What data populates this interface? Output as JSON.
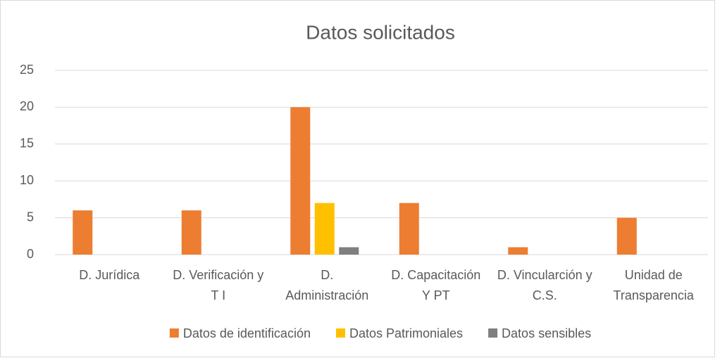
{
  "chart_data": {
    "type": "bar",
    "title": "Datos solicitados",
    "categories": [
      "D. Jurídica",
      "D. Verificación y T I",
      "D. Administración",
      "D. Capacitación Y PT",
      "D. Vincularción y C.S.",
      "Unidad de Transparencia"
    ],
    "series": [
      {
        "name": "Datos de identificación",
        "color": "#ED7D31",
        "values": [
          6,
          6,
          20,
          7,
          1,
          5
        ]
      },
      {
        "name": "Datos Patrimoniales",
        "color": "#FFC000",
        "values": [
          0,
          0,
          7,
          0,
          0,
          0
        ]
      },
      {
        "name": "Datos sensibles",
        "color": "#7F7F7F",
        "values": [
          0,
          0,
          1,
          0,
          0,
          0
        ]
      }
    ],
    "ylim": [
      0,
      25
    ],
    "yticks": [
      0,
      5,
      10,
      15,
      20,
      25
    ],
    "grid": true,
    "legend": "bottom"
  }
}
